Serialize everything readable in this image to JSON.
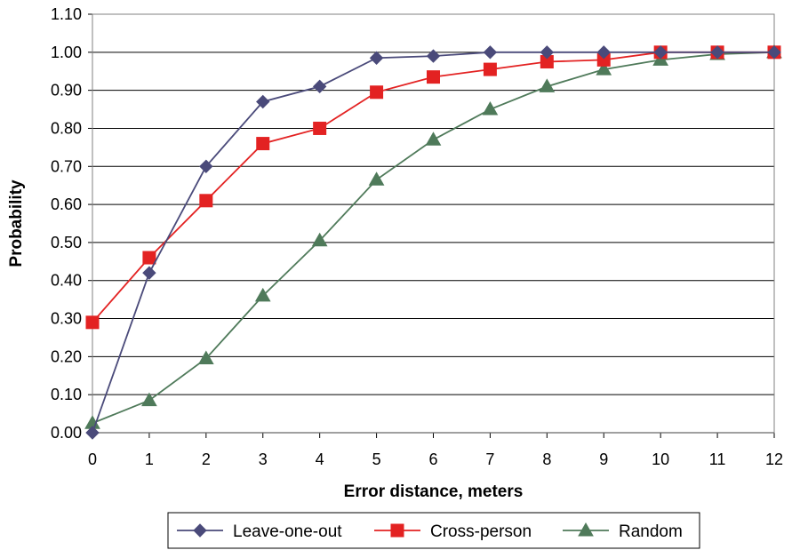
{
  "chart_data": {
    "type": "line",
    "title": "",
    "xlabel": "Error distance, meters",
    "ylabel": "Probability",
    "x": [
      0,
      1,
      2,
      3,
      4,
      5,
      6,
      7,
      8,
      9,
      10,
      11,
      12
    ],
    "x_ticks": [
      "0",
      "1",
      "2",
      "3",
      "4",
      "5",
      "6",
      "7",
      "8",
      "9",
      "10",
      "11",
      "12"
    ],
    "y_ticks": [
      "0.00",
      "0.10",
      "0.20",
      "0.30",
      "0.40",
      "0.50",
      "0.60",
      "0.70",
      "0.80",
      "0.90",
      "1.00",
      "1.10"
    ],
    "xlim": [
      0,
      12
    ],
    "ylim": [
      0,
      1.1
    ],
    "grid": "horizontal",
    "legend_position": "bottom",
    "series": [
      {
        "name": "Leave-one-out",
        "color": "#4a4a7a",
        "marker": "diamond",
        "values": [
          0.0,
          0.42,
          0.7,
          0.87,
          0.91,
          0.985,
          0.99,
          1.0,
          1.0,
          1.0,
          1.0,
          1.0,
          1.0
        ]
      },
      {
        "name": "Cross-person",
        "color": "#e32222",
        "marker": "square",
        "values": [
          0.29,
          0.46,
          0.61,
          0.76,
          0.8,
          0.895,
          0.935,
          0.955,
          0.975,
          0.98,
          1.0,
          1.0,
          1.0
        ]
      },
      {
        "name": "Random",
        "color": "#4f7a5a",
        "marker": "triangle",
        "values": [
          0.025,
          0.085,
          0.195,
          0.36,
          0.505,
          0.665,
          0.77,
          0.85,
          0.91,
          0.955,
          0.98,
          0.995,
          1.0
        ]
      }
    ]
  }
}
